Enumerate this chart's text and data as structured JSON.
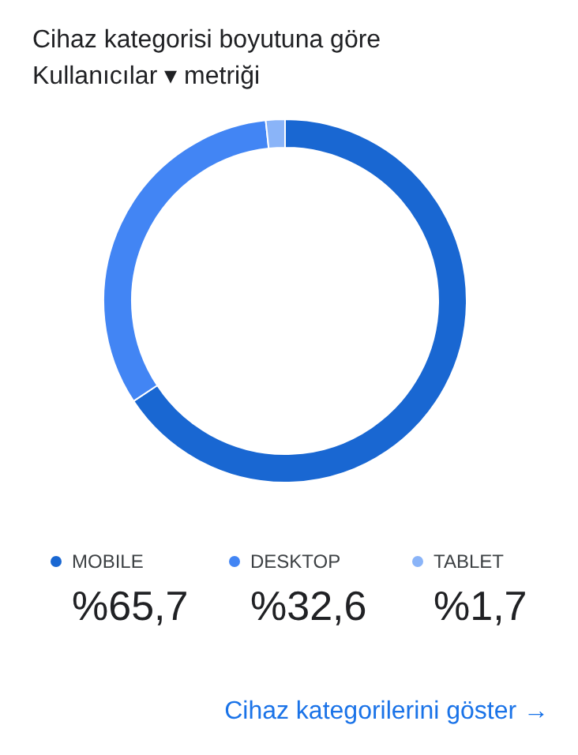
{
  "chart_data": {
    "type": "donut",
    "title": "Cihaz kategorisi boyutuna göre",
    "subtitle": "Kullanıcılar ▾ metriği",
    "categories": [
      "MOBILE",
      "DESKTOP",
      "TABLET"
    ],
    "values": [
      65.7,
      32.6,
      1.7
    ],
    "value_labels": [
      "%65,7",
      "%32,6",
      "%1,7"
    ],
    "colors": [
      "#1967d2",
      "#4285f4",
      "#8ab4f8"
    ],
    "legend": "bottom",
    "annotations": [
      "Cihaz kategorilerini göster →"
    ]
  }
}
